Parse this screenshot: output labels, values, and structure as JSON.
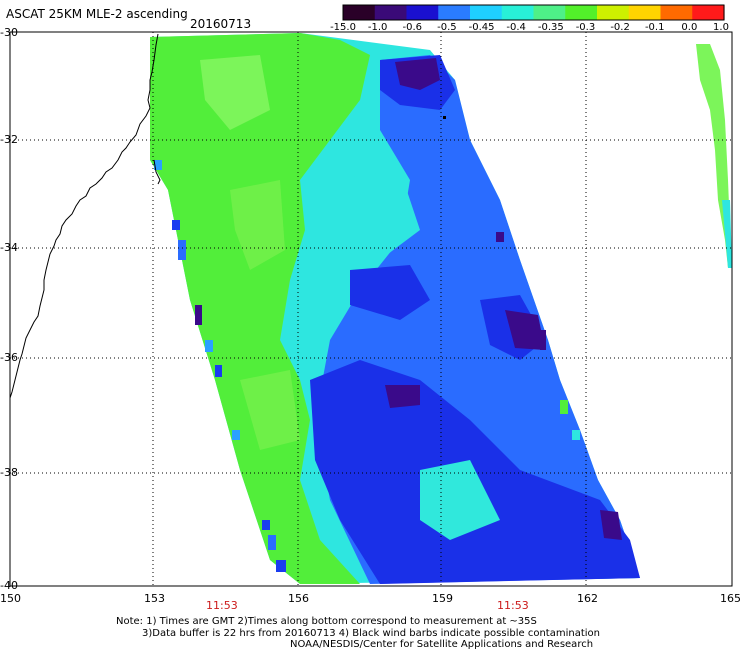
{
  "header": {
    "title": "ASCAT 25KM MLE-2 ascending",
    "date": "20160713"
  },
  "colorbar": {
    "labels": [
      "-15.0",
      "-1.0",
      "-0.6",
      "-0.5",
      "-0.45",
      "-0.4",
      "-0.35",
      "-0.3",
      "-0.2",
      "-0.1",
      "0.0",
      "1.0"
    ],
    "colors": [
      "#2a0028",
      "#3a0a78",
      "#1a10d0",
      "#2a7cff",
      "#1fd0ff",
      "#28f0d8",
      "#4ef088",
      "#52f02a",
      "#cdf000",
      "#ffd400",
      "#ff6a00",
      "#ff1a1a"
    ]
  },
  "axes": {
    "lat_labels": [
      "-30",
      "-32",
      "-34",
      "-36",
      "-38",
      "-40"
    ],
    "lon_labels": [
      "150",
      "153",
      "156",
      "159",
      "162",
      "165"
    ]
  },
  "swath_times": [
    "11:53",
    "11:53"
  ],
  "notes": [
    "Note: 1) Times are GMT 2)Times along bottom correspond to measurement at ~35S",
    "3)Data buffer is 22 hrs from 20160713 4) Black wind barbs indicate possible contamination",
    "NOAA/NESDIS/Center for Satellite Applications and Research"
  ],
  "map_colors": {
    "green": "#52ee3a",
    "light_green": "#7cf55a",
    "cyan": "#2ee6e0",
    "sky": "#2aa0ff",
    "blue": "#1a3cf0",
    "deep_blue": "#1212c8",
    "purple": "#3a0a8a"
  }
}
